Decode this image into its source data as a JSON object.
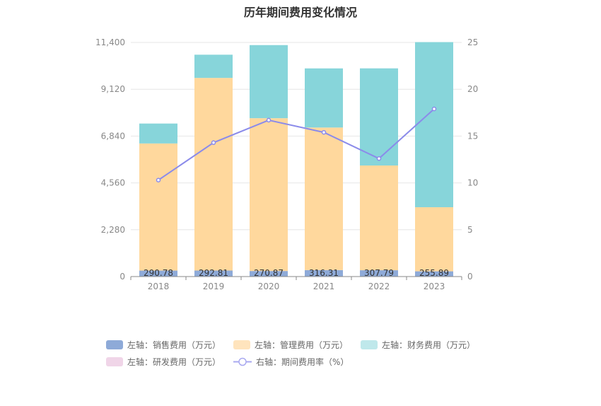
{
  "chart_data": {
    "type": "bar",
    "title": "历年期间费用变化情况",
    "categories": [
      "2018",
      "2019",
      "2020",
      "2021",
      "2022",
      "2023"
    ],
    "stacked": true,
    "left_axis": {
      "min": 0,
      "max": 11400,
      "ticks": [
        "0",
        "2,280",
        "4,560",
        "6,840",
        "9,120",
        "11,400"
      ],
      "tick_values": [
        0,
        2280,
        4560,
        6840,
        9120,
        11400
      ]
    },
    "right_axis": {
      "min": 0,
      "max": 25,
      "ticks": [
        "0",
        "5",
        "10",
        "15",
        "20",
        "25"
      ],
      "tick_values": [
        0,
        5,
        10,
        15,
        20,
        25
      ]
    },
    "series": [
      {
        "name": "左轴：销售费用（万元）",
        "axis": "left",
        "color": "#8eaad8",
        "values": [
          290.78,
          292.81,
          270.87,
          316.31,
          307.79,
          255.89
        ],
        "labels": [
          "290.78",
          "292.81",
          "270.87",
          "316.31",
          "307.79",
          "255.89"
        ]
      },
      {
        "name": "左轴：管理费用（万元）",
        "axis": "left",
        "color": "#ffd89d",
        "values": [
          6190,
          9380,
          7440,
          6940,
          5100,
          3120
        ]
      },
      {
        "name": "左轴：财务费用（万元）",
        "axis": "left",
        "color": "#87d5da",
        "values": [
          970,
          1130,
          3560,
          2880,
          4730,
          8040
        ]
      },
      {
        "name": "左轴：研发费用（万元）",
        "axis": "left",
        "color": "#f0d5e8",
        "values": [
          0,
          0,
          0,
          0,
          0,
          0
        ]
      },
      {
        "name": "右轴：期间费用率（%）",
        "axis": "right",
        "type": "line",
        "color": "#8b8bea",
        "values": [
          10.3,
          14.3,
          16.7,
          15.4,
          12.6,
          17.9
        ]
      }
    ],
    "grid": true,
    "legend_position": "bottom"
  }
}
